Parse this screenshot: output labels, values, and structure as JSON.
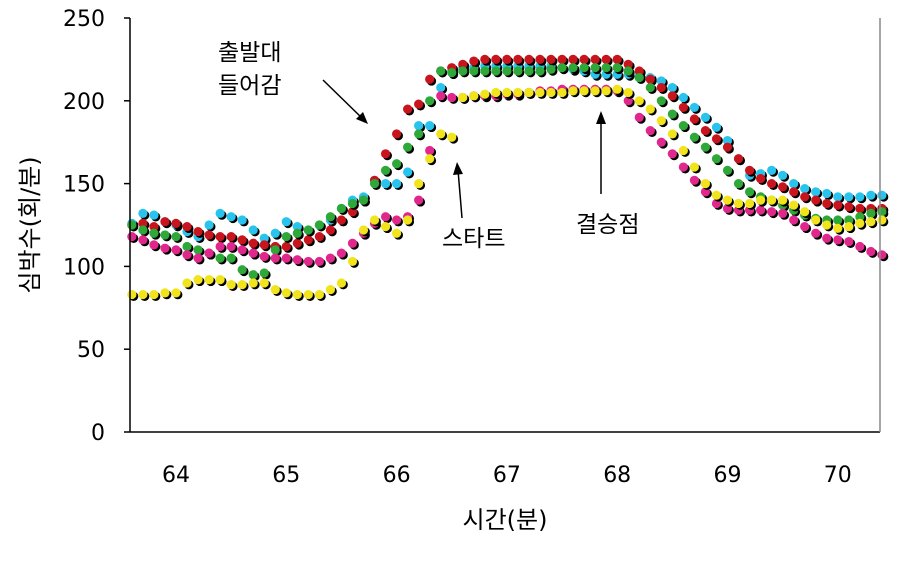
{
  "chart_data": {
    "type": "scatter",
    "title": "",
    "xlabel": "시간(분)",
    "ylabel": "심박수(회/분)",
    "xlim": [
      63.58,
      70.4
    ],
    "ylim": [
      0,
      250
    ],
    "xticks": [
      64,
      65,
      66,
      67,
      68,
      69,
      70
    ],
    "yticks": [
      0,
      50,
      100,
      150,
      200,
      250
    ],
    "grid": false,
    "x": [
      63.6,
      63.7,
      63.8,
      63.9,
      64.0,
      64.1,
      64.2,
      64.3,
      64.4,
      64.5,
      64.6,
      64.7,
      64.8,
      64.9,
      65.0,
      65.1,
      65.2,
      65.3,
      65.4,
      65.5,
      65.6,
      65.7,
      65.8,
      65.9,
      66.0,
      66.1,
      66.2,
      66.3,
      66.4,
      66.5,
      66.6,
      66.7,
      66.8,
      66.9,
      67.0,
      67.1,
      67.2,
      67.3,
      67.4,
      67.5,
      67.6,
      67.7,
      67.8,
      67.9,
      68.0,
      68.1,
      68.2,
      68.3,
      68.4,
      68.5,
      68.6,
      68.7,
      68.8,
      68.9,
      69.0,
      69.1,
      69.2,
      69.3,
      69.4,
      69.5,
      69.6,
      69.7,
      69.8,
      69.9,
      70.0,
      70.1,
      70.2,
      70.3,
      70.4
    ],
    "series": [
      {
        "name": "cyan",
        "color": "#29c4ee",
        "values": [
          126,
          132,
          131,
          127,
          125,
          121,
          118,
          125,
          132,
          130,
          128,
          122,
          117,
          120,
          127,
          124,
          122,
          125,
          128,
          135,
          140,
          142,
          152,
          150,
          150,
          157,
          185,
          185,
          208,
          218,
          220,
          220,
          221,
          221,
          221,
          221,
          221,
          221,
          221,
          220,
          219,
          218,
          216,
          216,
          216,
          216,
          215,
          214,
          212,
          208,
          202,
          196,
          190,
          184,
          176,
          165,
          155,
          156,
          158,
          155,
          150,
          147,
          145,
          144,
          142,
          142,
          142,
          143,
          143
        ]
      },
      {
        "name": "red",
        "color": "#c8141c",
        "values": [
          125,
          126,
          124,
          127,
          126,
          124,
          121,
          119,
          118,
          118,
          116,
          114,
          113,
          112,
          112,
          114,
          116,
          118,
          122,
          128,
          133,
          140,
          152,
          168,
          180,
          195,
          198,
          213,
          218,
          220,
          222,
          224,
          225,
          225,
          225,
          225,
          225,
          225,
          225,
          225,
          225,
          225,
          225,
          225,
          225,
          222,
          218,
          213,
          208,
          203,
          196,
          189,
          182,
          177,
          172,
          165,
          158,
          153,
          150,
          148,
          145,
          142,
          140,
          138,
          137,
          136,
          135,
          135,
          135
        ]
      },
      {
        "name": "green",
        "color": "#2ea838",
        "values": [
          125,
          122,
          120,
          119,
          118,
          112,
          110,
          108,
          105,
          105,
          98,
          95,
          96,
          110,
          118,
          120,
          122,
          125,
          130,
          135,
          138,
          140,
          150,
          158,
          162,
          172,
          180,
          200,
          218,
          217,
          218,
          218,
          218,
          218,
          218,
          218,
          218,
          218,
          219,
          220,
          220,
          220,
          220,
          220,
          220,
          218,
          214,
          208,
          200,
          192,
          185,
          178,
          172,
          165,
          158,
          150,
          145,
          142,
          140,
          137,
          134,
          131,
          129,
          128,
          128,
          128,
          130,
          132,
          133
        ]
      },
      {
        "name": "magenta",
        "color": "#e0288c",
        "values": [
          118,
          116,
          113,
          111,
          110,
          107,
          105,
          108,
          112,
          112,
          110,
          108,
          106,
          105,
          105,
          104,
          103,
          103,
          105,
          108,
          114,
          120,
          126,
          130,
          128,
          130,
          140,
          170,
          203,
          202,
          202,
          203,
          203,
          203,
          204,
          204,
          205,
          206,
          206,
          207,
          207,
          207,
          207,
          207,
          206,
          200,
          190,
          182,
          175,
          168,
          160,
          152,
          145,
          138,
          135,
          134,
          134,
          134,
          133,
          132,
          128,
          124,
          120,
          117,
          116,
          115,
          112,
          109,
          107
        ]
      },
      {
        "name": "yellow",
        "color": "#f2e41c",
        "values": [
          83,
          83,
          83,
          84,
          84,
          90,
          92,
          92,
          92,
          89,
          89,
          90,
          90,
          86,
          84,
          83,
          83,
          83,
          86,
          90,
          103,
          122,
          128,
          124,
          120,
          128,
          150,
          165,
          180,
          178,
          202,
          203,
          204,
          205,
          205,
          205,
          205,
          205,
          205,
          205,
          206,
          206,
          206,
          206,
          207,
          205,
          200,
          195,
          188,
          180,
          170,
          160,
          150,
          143,
          140,
          138,
          138,
          140,
          140,
          140,
          137,
          133,
          128,
          125,
          123,
          124,
          126,
          127,
          128
        ]
      }
    ],
    "annotations": [
      {
        "lines": [
          "출발대",
          "들어감"
        ],
        "x": 66.0,
        "y": 190
      },
      {
        "lines": [
          "스타트"
        ],
        "x": 66.5,
        "y": 178
      },
      {
        "lines": [
          "결승점"
        ],
        "x": 67.85,
        "y": 193
      }
    ]
  }
}
